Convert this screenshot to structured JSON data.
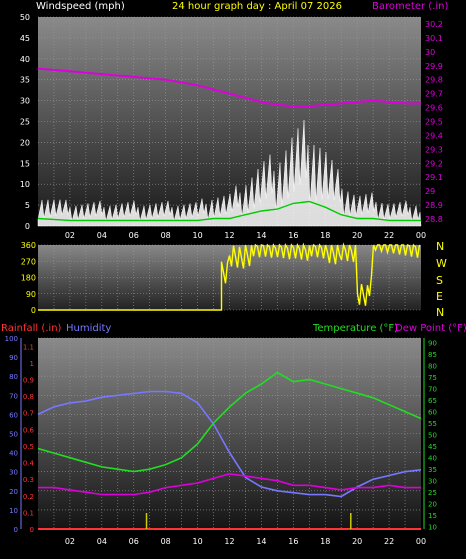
{
  "header": {
    "wind_label": "Windspeed (mph)",
    "title": "24 hour graph day : April 07 2026",
    "baro_label": "Barometer (.in)"
  },
  "direction_letters": [
    "N",
    "W",
    "S",
    "E",
    "N"
  ],
  "lower_labels": {
    "rain": "Rainfall (.in)",
    "humidity": "Humidity",
    "temp": "Temperature (°F)",
    "dew": "Dew Point (°F)"
  },
  "colors": {
    "wind": "#ffffff",
    "gust": "#00cc00",
    "barometer": "#dd00dd",
    "direction": "#ffff00",
    "rain": "#ff3333",
    "humidity": "#7777ff",
    "temperature": "#22dd22",
    "dewpoint": "#dd00dd",
    "rain_bars": "#cccc00"
  },
  "chart_data": [
    {
      "type": "line",
      "title": "24 hour graph day : April 07 2026",
      "x_ticks": [
        "02",
        "04",
        "06",
        "08",
        "10",
        "12",
        "14",
        "16",
        "18",
        "20",
        "22",
        "00"
      ],
      "y_left_label": "Windspeed (mph)",
      "y_left_ticks": [
        "0",
        "5",
        "10",
        "15",
        "20",
        "25",
        "30",
        "35",
        "40",
        "45",
        "50"
      ],
      "y_left_range": [
        0,
        50
      ],
      "y_right_label": "Barometer (.in)",
      "y_right_ticks": [
        "28.8",
        "28.9",
        "29",
        "29.1",
        "29.2",
        "29.3",
        "29.4",
        "29.5",
        "29.6",
        "29.7",
        "29.8",
        "29.9",
        "30",
        "30.1",
        "30.2"
      ],
      "y_right_range": [
        28.75,
        30.25
      ],
      "hours": [
        0,
        2,
        4,
        6,
        8,
        10,
        11,
        12,
        13,
        14,
        15,
        16,
        17,
        18,
        19,
        20,
        21,
        22,
        23,
        24
      ],
      "series": [
        {
          "name": "Windspeed",
          "axis": "left",
          "values": [
            4,
            3,
            3,
            3,
            3,
            3,
            4,
            4,
            6,
            8,
            9,
            12,
            13,
            10,
            6,
            4,
            4,
            3,
            3,
            3
          ]
        },
        {
          "name": "Barometer",
          "axis": "right",
          "values": [
            29.88,
            29.86,
            29.84,
            29.82,
            29.8,
            29.76,
            29.73,
            29.7,
            29.67,
            29.64,
            29.62,
            29.61,
            29.61,
            29.62,
            29.63,
            29.64,
            29.65,
            29.64,
            29.63,
            29.63
          ]
        }
      ]
    },
    {
      "type": "line",
      "y_ticks": [
        "0",
        "90",
        "180",
        "270",
        "360"
      ],
      "y_range": [
        0,
        360
      ],
      "series": [
        {
          "name": "Wind Direction",
          "note_hours": [
            11.5,
            12,
            13,
            14,
            15,
            16,
            17,
            18,
            19,
            20,
            21,
            22,
            23,
            24
          ],
          "values": [
            200,
            300,
            320,
            330,
            340,
            350,
            320,
            300,
            330,
            100,
            360,
            360,
            360,
            360
          ]
        }
      ]
    },
    {
      "type": "line",
      "x_ticks": [
        "02",
        "04",
        "06",
        "08",
        "10",
        "12",
        "14",
        "16",
        "18",
        "20",
        "22",
        "00"
      ],
      "y_humidity_ticks": [
        "0",
        "10",
        "20",
        "30",
        "40",
        "50",
        "60",
        "70",
        "80",
        "90",
        "100"
      ],
      "y_humidity_range": [
        0,
        100
      ],
      "y_rain_ticks": [
        "0",
        "0.1",
        "0.2",
        "0.3",
        "0.4",
        "0.5",
        "0.6",
        "0.7",
        "0.8",
        "0.9",
        "1",
        "1.1"
      ],
      "y_rain_range": [
        0,
        1.15
      ],
      "y_temp_ticks": [
        "10",
        "15",
        "20",
        "25",
        "30",
        "35",
        "40",
        "45",
        "50",
        "55",
        "60",
        "65",
        "70",
        "75",
        "80",
        "85",
        "90"
      ],
      "y_temp_range": [
        9,
        92
      ],
      "hours": [
        0,
        1,
        2,
        3,
        4,
        5,
        6,
        7,
        8,
        9,
        10,
        11,
        12,
        13,
        14,
        15,
        16,
        17,
        18,
        19,
        20,
        21,
        22,
        23,
        24
      ],
      "series": [
        {
          "name": "Humidity",
          "values": [
            60,
            64,
            66,
            67,
            69,
            70,
            71,
            72,
            72,
            71,
            66,
            55,
            40,
            27,
            22,
            20,
            19,
            18,
            18,
            17,
            22,
            26,
            28,
            30,
            31
          ]
        },
        {
          "name": "Temperature",
          "values": [
            44,
            42,
            40,
            38,
            36,
            35,
            34,
            35,
            37,
            40,
            46,
            55,
            62,
            68,
            72,
            77,
            73,
            74,
            72,
            70,
            68,
            66,
            63,
            60,
            57
          ]
        },
        {
          "name": "Dew Point",
          "values": [
            27,
            27,
            26,
            25,
            24,
            24,
            24,
            25,
            27,
            28,
            29,
            31,
            33,
            32,
            31,
            30,
            28,
            28,
            27,
            26,
            27,
            27,
            28,
            27,
            27
          ]
        },
        {
          "name": "Rainfall",
          "values": [
            0,
            0,
            0,
            0,
            0,
            0,
            0,
            0,
            0,
            0,
            0,
            0,
            0,
            0,
            0,
            0,
            0,
            0,
            0,
            0,
            0,
            0,
            0,
            0,
            0
          ]
        }
      ],
      "rain_ticks_hours": [
        6.8,
        19.6
      ]
    }
  ]
}
